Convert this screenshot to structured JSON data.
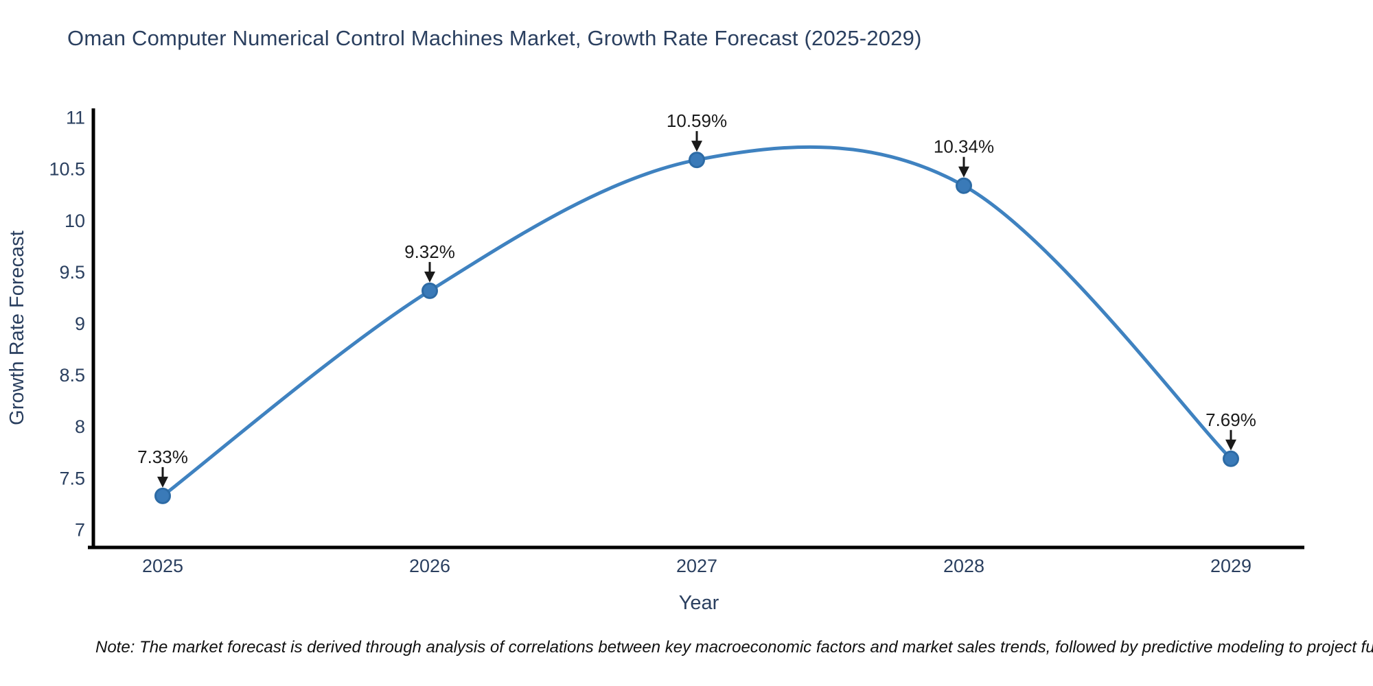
{
  "page": {
    "note": "Note: The market forecast is derived through analysis of correlations between key macroeconomic factors and market sales trends, followed by predictive modeling to project future sal"
  },
  "chart_data": {
    "type": "line",
    "title": "Oman Computer Numerical Control Machines Market, Growth Rate Forecast (2025-2029)",
    "xlabel": "Year",
    "ylabel": "Growth Rate Forecast",
    "categories": [
      "2025",
      "2026",
      "2027",
      "2028",
      "2029"
    ],
    "values": [
      7.33,
      9.32,
      10.59,
      10.34,
      7.69
    ],
    "point_labels": [
      "7.33%",
      "9.32%",
      "10.59%",
      "10.34%",
      "7.69%"
    ],
    "yticks": [
      7,
      7.5,
      8,
      8.5,
      9,
      9.5,
      10,
      10.5,
      11
    ],
    "ylim": [
      6.83,
      11.09
    ],
    "grid": false,
    "legend": "none",
    "line_shape": "spline",
    "annotation_style": "value label with down arrow above each point",
    "colors": {
      "line": "#3f82c0",
      "marker_fill": "#3a7ab8",
      "marker_edge": "#2d6ba5",
      "axis": "#000000",
      "tick_label": "#2a3f5f",
      "annotation": "#1a1a1a",
      "title": "#2a3f5f"
    }
  }
}
